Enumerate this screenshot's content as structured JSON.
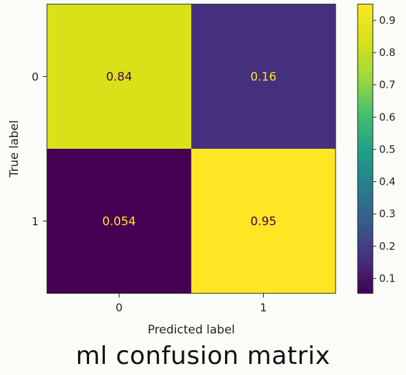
{
  "caption": "ml confusion matrix",
  "chart_data": {
    "type": "heatmap",
    "x_categories": [
      "0",
      "1"
    ],
    "y_categories": [
      "0",
      "1"
    ],
    "values": [
      [
        0.84,
        0.16
      ],
      [
        0.054,
        0.95
      ]
    ],
    "cell_labels": [
      [
        "0.84",
        "0.16"
      ],
      [
        "0.054",
        "0.95"
      ]
    ],
    "xlabel": "Predicted label",
    "ylabel": "True label",
    "colormap": "viridis",
    "colorbar": {
      "range": [
        0.054,
        0.95
      ],
      "ticks": [
        0.1,
        0.2,
        0.3,
        0.4,
        0.5,
        0.6,
        0.7,
        0.8,
        0.9
      ],
      "tick_labels": [
        "0.1",
        "0.2",
        "0.3",
        "0.4",
        "0.5",
        "0.6",
        "0.7",
        "0.8",
        "0.9"
      ]
    },
    "label_colors": {
      "on_dark": "#fde725",
      "on_light": "#440154"
    }
  }
}
